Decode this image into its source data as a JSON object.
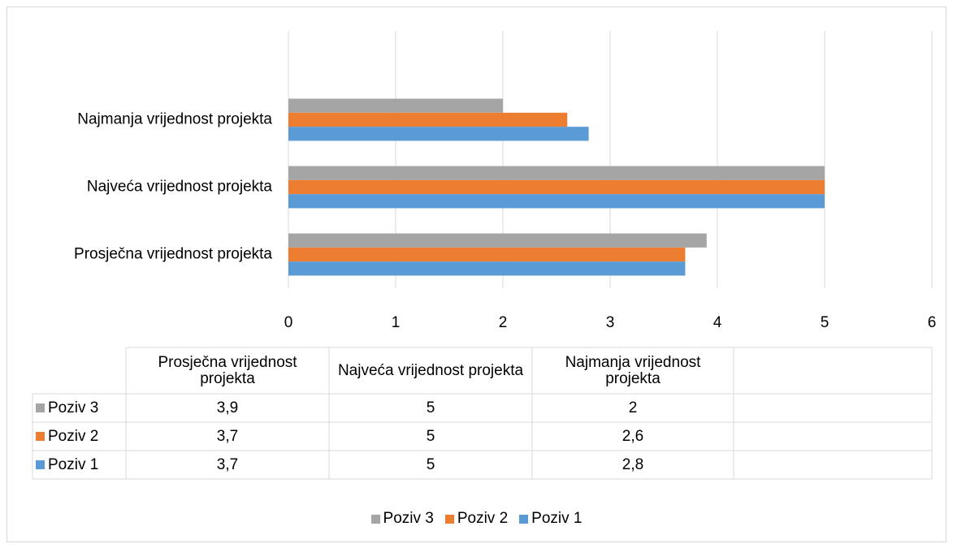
{
  "chart_data": {
    "type": "bar",
    "orientation": "horizontal",
    "categories": [
      "Prosječna vrijednost projekta",
      "Najveća vrijednost projekta",
      "Najmanja vrijednost projekta"
    ],
    "series": [
      {
        "name": "Poziv 3",
        "color": "#a5a5a5",
        "values": [
          3.9,
          5,
          2
        ],
        "value_labels": [
          "3,9",
          "5",
          "2"
        ]
      },
      {
        "name": "Poziv 2",
        "color": "#ed7d31",
        "values": [
          3.7,
          5,
          2.6
        ],
        "value_labels": [
          "3,7",
          "5",
          "2,6"
        ]
      },
      {
        "name": "Poziv 1",
        "color": "#5b9bd5",
        "values": [
          3.7,
          5,
          2.8
        ],
        "value_labels": [
          "3,7",
          "5",
          "2,8"
        ]
      }
    ],
    "xlim": [
      0,
      6
    ],
    "xticks": [
      0,
      1,
      2,
      3,
      4,
      5,
      6
    ],
    "grid": true
  }
}
